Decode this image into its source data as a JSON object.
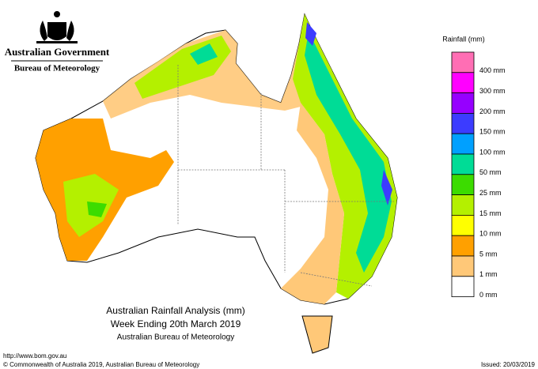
{
  "header": {
    "government": "Australian Government",
    "agency": "Bureau of Meteorology"
  },
  "legend": {
    "title": "Rainfall (mm)",
    "items": [
      {
        "label": "400 mm",
        "color": "#ff6eb4"
      },
      {
        "label": "300 mm",
        "color": "#ff00ff"
      },
      {
        "label": "200 mm",
        "color": "#9600ff"
      },
      {
        "label": "150 mm",
        "color": "#3c3cff"
      },
      {
        "label": "100 mm",
        "color": "#00a0ff"
      },
      {
        "label": "50 mm",
        "color": "#00dc96"
      },
      {
        "label": "25 mm",
        "color": "#3cdc00"
      },
      {
        "label": "15 mm",
        "color": "#b4f000"
      },
      {
        "label": "10 mm",
        "color": "#ffff00"
      },
      {
        "label": "5 mm",
        "color": "#ffa000"
      },
      {
        "label": "1 mm",
        "color": "#ffc878"
      },
      {
        "label": "0 mm",
        "color": "#ffffff"
      }
    ]
  },
  "map_title": [
    "Australian Rainfall Analysis (mm)",
    "Week Ending 20th March 2019",
    "Australian Bureau of Meteorology"
  ],
  "footer": {
    "url": "http://www.bom.gov.au",
    "copyright": "© Commonwealth of Australia 2019, Australian Bureau of Meteorology",
    "issued": "Issued: 20/03/2019"
  }
}
